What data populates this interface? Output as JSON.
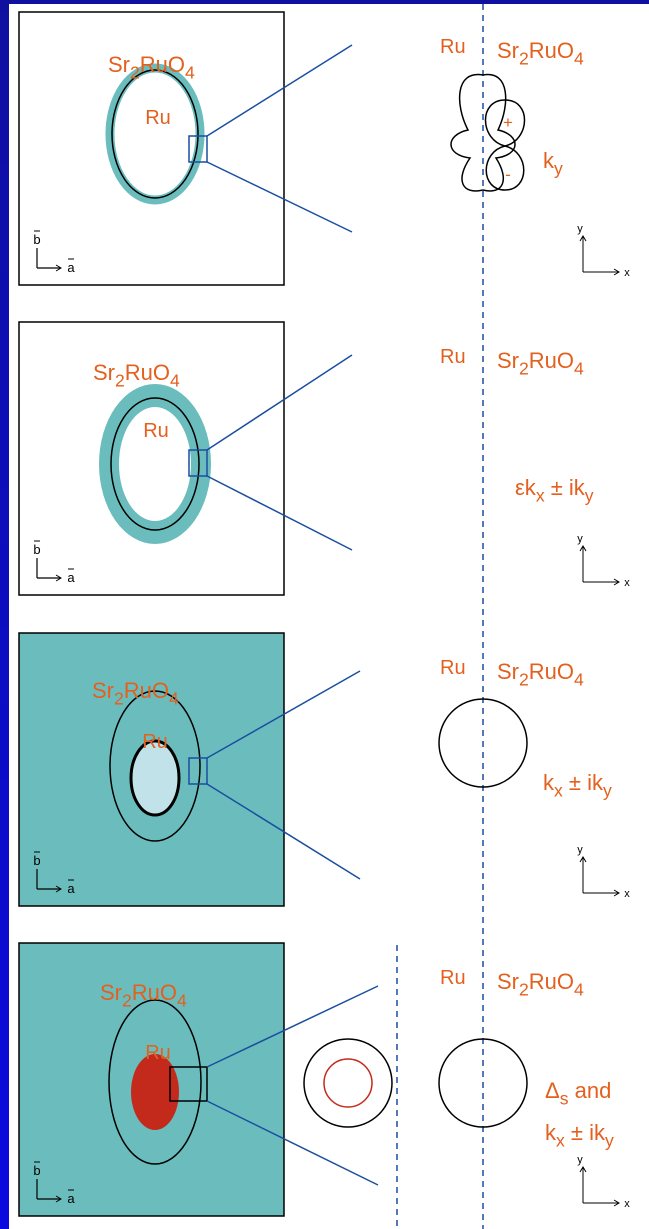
{
  "panels": [
    {
      "material_label": [
        "Sr",
        "2",
        "RuO",
        "4"
      ],
      "core_label": "Ru",
      "axis_b": "b",
      "axis_a": "a",
      "interface_left": "Ru",
      "interface_right": [
        "Sr",
        "2",
        "RuO",
        "4"
      ],
      "lobe_plus": "+",
      "lobe_minus": "-",
      "gap_label": [
        [
          "k",
          "y"
        ]
      ],
      "axis_y": "y",
      "axis_x": "x"
    },
    {
      "material_label": [
        "Sr",
        "2",
        "RuO",
        "4"
      ],
      "core_label": "Ru",
      "axis_b": "b",
      "axis_a": "a",
      "interface_left": "Ru",
      "interface_right": [
        "Sr",
        "2",
        "RuO",
        "4"
      ],
      "gap_label": [
        [
          "εk",
          "x",
          " ± ik",
          "y"
        ]
      ],
      "axis_y": "y",
      "axis_x": "x"
    },
    {
      "material_label": [
        "Sr",
        "2",
        "RuO",
        "4"
      ],
      "core_label": "Ru",
      "axis_b": "b",
      "axis_a": "a",
      "interface_left": "Ru",
      "interface_right": [
        "Sr",
        "2",
        "RuO",
        "4"
      ],
      "gap_label": [
        [
          "k",
          "x",
          " ± ik",
          "y"
        ]
      ],
      "axis_y": "y",
      "axis_x": "x"
    },
    {
      "material_label": [
        "Sr",
        "2",
        "RuO",
        "4"
      ],
      "core_label": "Ru",
      "axis_b": "b",
      "axis_a": "a",
      "interface_left": "Ru",
      "interface_right": [
        "Sr",
        "2",
        "RuO",
        "4"
      ],
      "gap_label": [
        [
          "Δ",
          "s",
          " and"
        ],
        [
          "k",
          "x",
          " ± ik",
          "y"
        ]
      ],
      "axis_y": "y",
      "axis_x": "x"
    }
  ]
}
